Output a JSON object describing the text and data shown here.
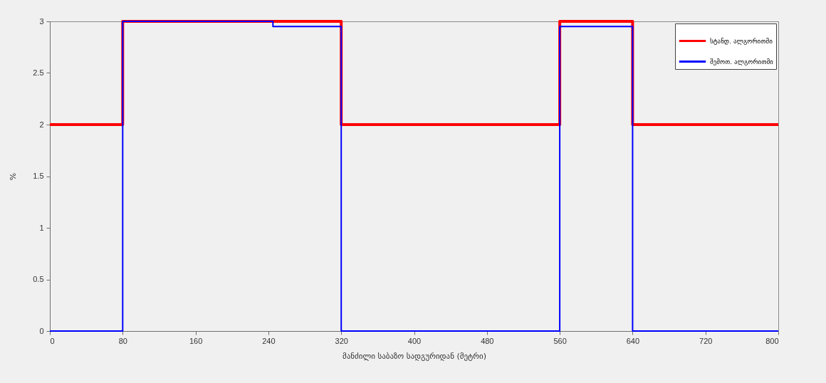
{
  "chart_data": {
    "type": "step",
    "xlabel": "მანძილი საბაზო სადგურიდან (მეტრი)",
    "ylabel": "%",
    "series": [
      {
        "name": "სტანდ. ალგორითმი",
        "color": "#ff0000",
        "x": [
          0,
          80,
          320,
          560,
          640,
          800
        ],
        "values": [
          2,
          3,
          2,
          3,
          2,
          2
        ]
      },
      {
        "name": "შემოთ. ალგორითმი",
        "color": "#0000ff",
        "x": [
          0,
          80,
          245,
          320,
          560,
          640,
          800
        ],
        "values": [
          0,
          3,
          2.95,
          0,
          2.95,
          0,
          0
        ]
      }
    ],
    "xlim": [
      0,
      800
    ],
    "ylim": [
      0,
      3
    ],
    "xticks": [
      0,
      80,
      160,
      240,
      320,
      400,
      480,
      560,
      640,
      720,
      800
    ],
    "yticks": [
      0,
      0.5,
      1,
      1.5,
      2,
      2.5,
      3
    ],
    "grid": false,
    "legend": "top right",
    "line_style": "solid"
  }
}
